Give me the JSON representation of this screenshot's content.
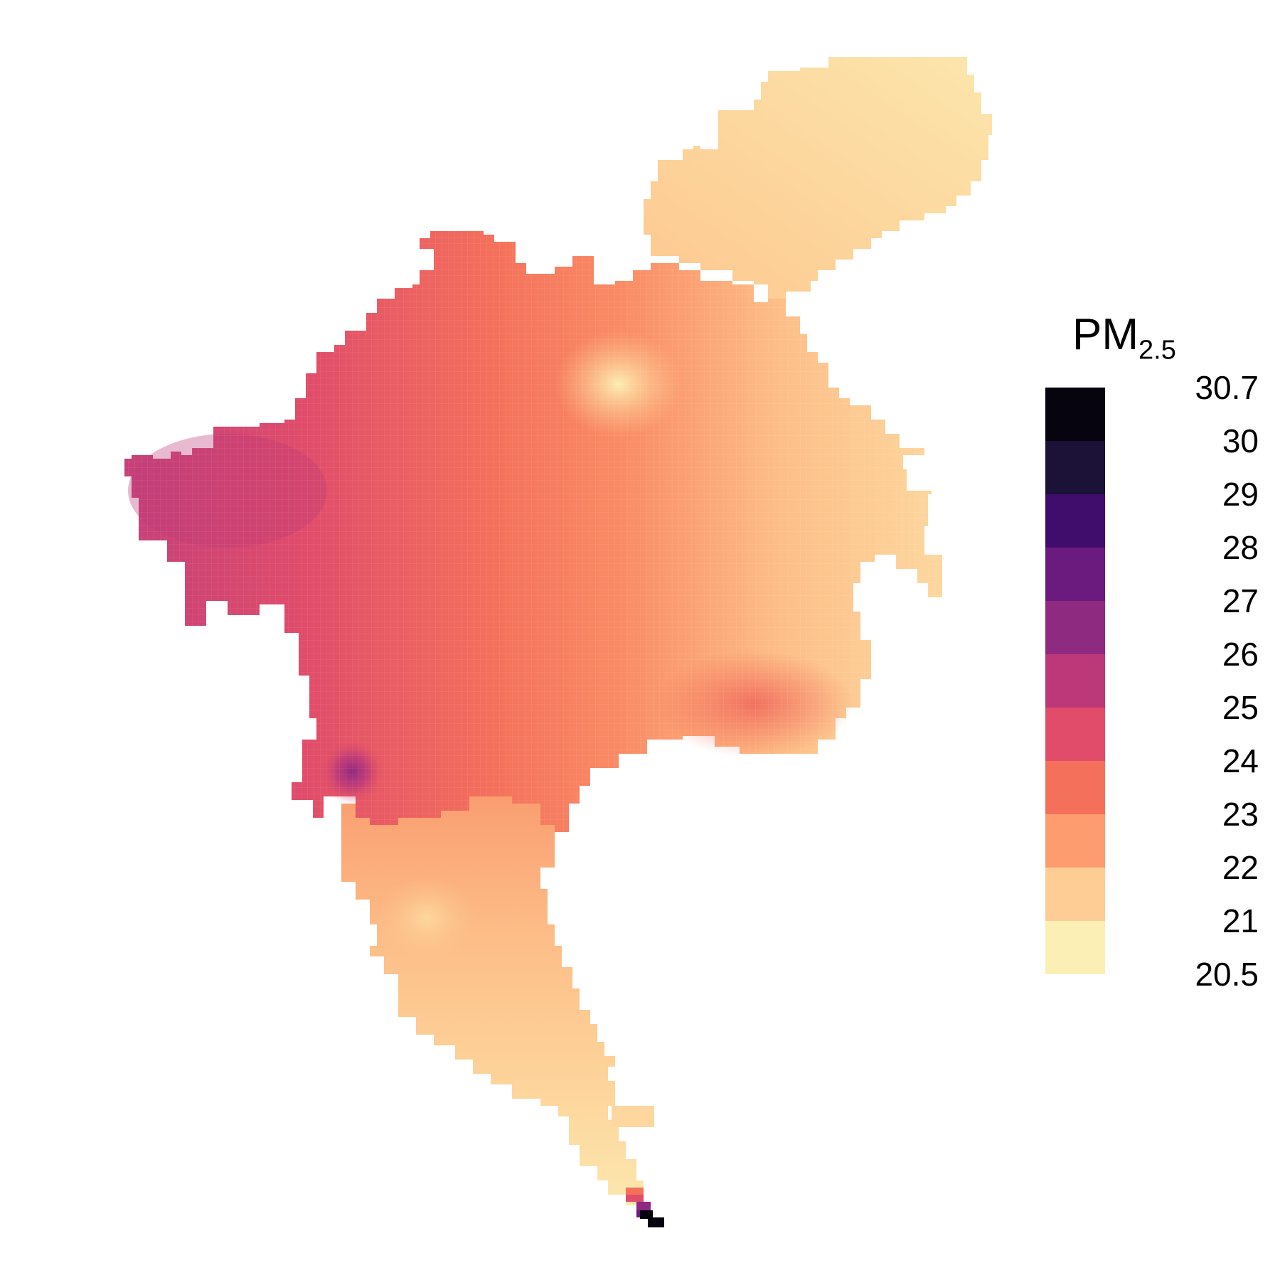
{
  "legend": {
    "title_main": "PM",
    "title_sub": "2.5",
    "classes": [
      {
        "label": "30.7",
        "color": "#05040F"
      },
      {
        "label": "30",
        "color": "#1C1137"
      },
      {
        "label": "29",
        "color": "#410D6C"
      },
      {
        "label": "28",
        "color": "#6B1A7E"
      },
      {
        "label": "27",
        "color": "#8F2A81"
      },
      {
        "label": "26",
        "color": "#BC3879"
      },
      {
        "label": "25",
        "color": "#E04C6A"
      },
      {
        "label": "24",
        "color": "#F4705B"
      },
      {
        "label": "23",
        "color": "#FD9C6E"
      },
      {
        "label": "22",
        "color": "#FDCD95"
      },
      {
        "label": "21",
        "color": "#FBEFB5"
      }
    ],
    "bottom_label": "20.5"
  },
  "map": {
    "variable": "PM2.5",
    "value_range": [
      20.5,
      30.7
    ],
    "hotspots": [
      {
        "value": 20.6
      },
      {
        "value": 27.6
      },
      {
        "value": 30.7
      }
    ]
  }
}
